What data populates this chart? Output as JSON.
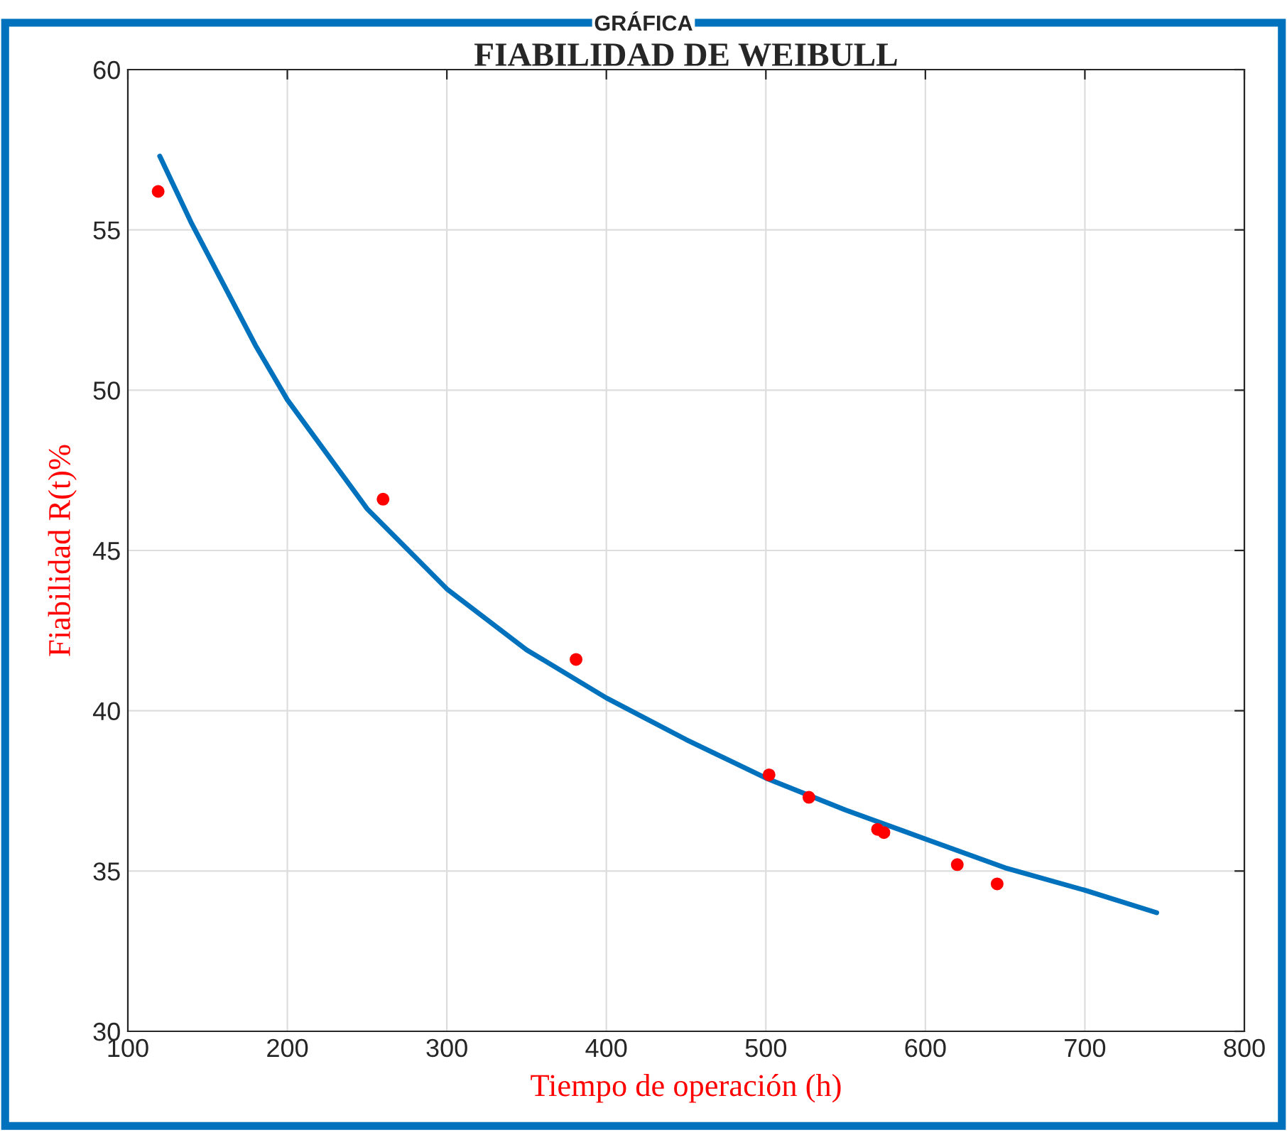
{
  "chart_data": {
    "type": "scatter",
    "title": "FIABILIDAD DE WEIBULL",
    "xlabel": "Tiempo de operación (h)",
    "ylabel": "Fiabilidad R(t)%",
    "annotations": [
      "GRÁFICA"
    ],
    "series": [
      {
        "color": "#ff0000",
        "marker": "circle",
        "x": [
          119,
          260,
          381,
          502,
          527,
          570,
          574,
          620,
          645
        ],
        "values": [
          56.2,
          46.6,
          41.6,
          38.0,
          37.3,
          36.3,
          36.2,
          35.2,
          34.6
        ]
      },
      {
        "type": "line",
        "color": "#0072bd",
        "marker": "none",
        "line_style": "solid",
        "x": [
          120,
          140,
          160,
          180,
          200,
          250,
          300,
          350,
          400,
          450,
          500,
          550,
          600,
          650,
          700,
          745
        ],
        "values": [
          57.3,
          55.2,
          53.3,
          51.4,
          49.7,
          46.3,
          43.8,
          41.9,
          40.4,
          39.1,
          37.9,
          36.9,
          36.0,
          35.1,
          34.4,
          33.7
        ]
      }
    ],
    "xlim": [
      100,
      800
    ],
    "xticks": [
      100,
      200,
      300,
      400,
      500,
      600,
      700,
      800
    ],
    "ylim": [
      30,
      60
    ],
    "yticks": [
      30,
      35,
      40,
      45,
      50,
      55,
      60
    ],
    "grid": true,
    "legend": false
  }
}
